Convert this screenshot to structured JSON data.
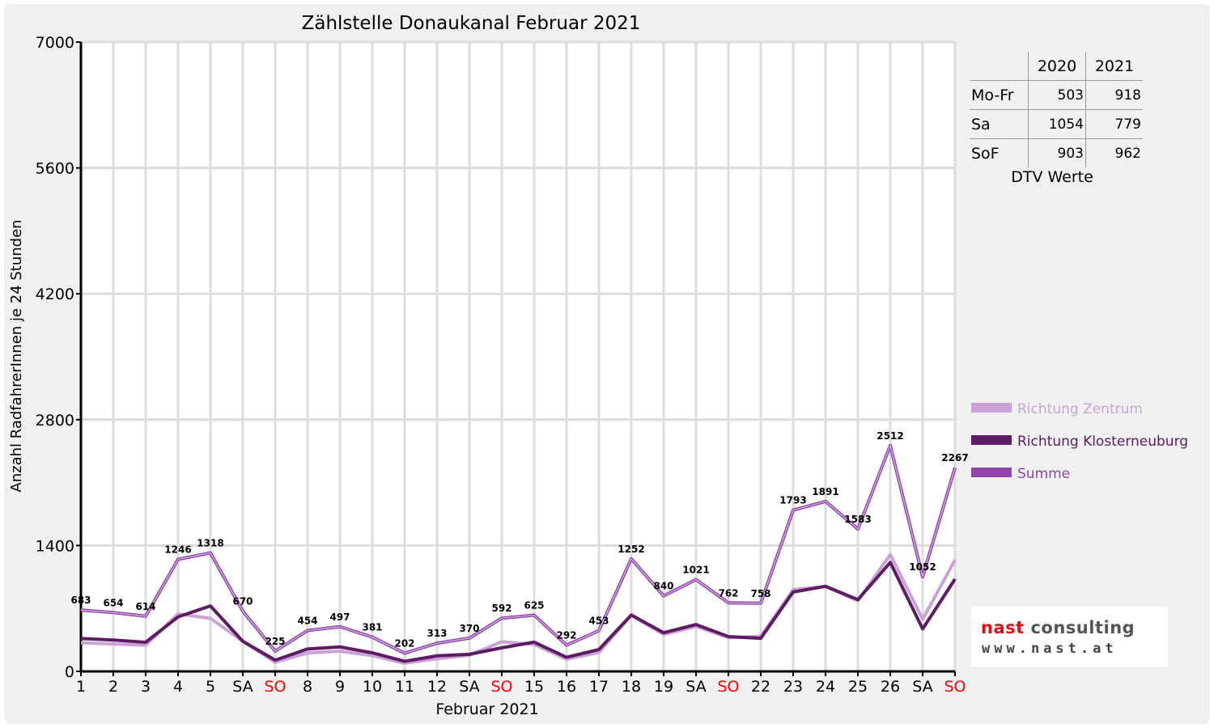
{
  "chart_data": {
    "type": "line",
    "title": "Zählstelle Donaukanal Februar 2021",
    "xlabel": "Februar 2021",
    "ylabel": "Anzahl RadfahrerInnen je 24 Stunden",
    "ylim": [
      0,
      7000
    ],
    "yticks": [
      0,
      1400,
      2800,
      4200,
      5600,
      7000
    ],
    "grid": true,
    "legend_position": "right",
    "categories": [
      "1",
      "2",
      "3",
      "4",
      "5",
      "SA",
      "SO",
      "8",
      "9",
      "10",
      "11",
      "12",
      "SA",
      "SO",
      "15",
      "16",
      "17",
      "18",
      "19",
      "SA",
      "SO",
      "22",
      "23",
      "24",
      "25",
      "26",
      "SA",
      "SO"
    ],
    "category_colors": [
      "#000000",
      "#000000",
      "#000000",
      "#000000",
      "#000000",
      "#000000",
      "#ff0000",
      "#000000",
      "#000000",
      "#000000",
      "#000000",
      "#000000",
      "#000000",
      "#ff0000",
      "#000000",
      "#000000",
      "#000000",
      "#000000",
      "#000000",
      "#000000",
      "#ff0000",
      "#000000",
      "#000000",
      "#000000",
      "#000000",
      "#000000",
      "#000000",
      "#ff0000"
    ],
    "series": [
      {
        "name": "Richtung Zentrum",
        "color": "#c9a3d8",
        "values": [
          318,
          305,
          290,
          640,
          590,
          335,
          100,
          205,
          225,
          175,
          90,
          140,
          180,
          330,
          300,
          135,
          210,
          625,
          410,
          500,
          375,
          390,
          910,
          945,
          785,
          1300,
          580,
          1240
        ]
      },
      {
        "name": "Richtung Klosterneuburg",
        "color": "#5e1a63",
        "values": [
          365,
          349,
          324,
          606,
          728,
          335,
          125,
          249,
          272,
          206,
          112,
          173,
          190,
          262,
          325,
          157,
          243,
          627,
          430,
          521,
          387,
          368,
          883,
          946,
          798,
          1212,
          472,
          1027
        ]
      },
      {
        "name": "Summe",
        "color": "#8e44a8",
        "values": [
          683,
          654,
          614,
          1246,
          1318,
          670,
          225,
          454,
          497,
          381,
          202,
          313,
          370,
          592,
          625,
          292,
          453,
          1252,
          840,
          1021,
          762,
          758,
          1793,
          1891,
          1583,
          2512,
          1052,
          2267
        ]
      }
    ],
    "data_labels": [
      "683",
      "654",
      "614",
      "1246",
      "1318",
      "670",
      "225",
      "454",
      "497",
      "381",
      "202",
      "313",
      "370",
      "592",
      "625",
      "292",
      "453",
      "1252",
      "840",
      "1021",
      "762",
      "758",
      "1793",
      "1891",
      "1583",
      "2512",
      "1052",
      "2267"
    ]
  },
  "dtv_table": {
    "headers": [
      "",
      "2020",
      "2021"
    ],
    "rows": [
      {
        "label": "Mo-Fr",
        "v2020": "503",
        "v2021": "918"
      },
      {
        "label": "Sa",
        "v2020": "1054",
        "v2021": "779"
      },
      {
        "label": "SoF",
        "v2020": "903",
        "v2021": "962"
      }
    ],
    "caption": "DTV Werte"
  },
  "logo": {
    "name_part1": "nast",
    "name_part2": " consulting",
    "url": "www.nast.at"
  }
}
